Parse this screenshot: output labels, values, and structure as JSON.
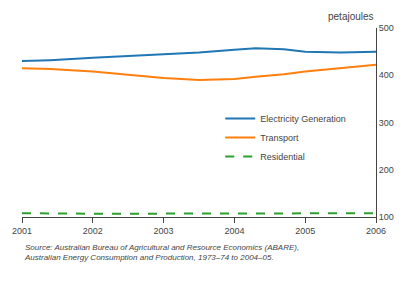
{
  "chart_data": {
    "type": "line",
    "x": [
      2001,
      2001.4,
      2002,
      2002.5,
      2003,
      2003.5,
      2004,
      2004.3,
      2004.7,
      2005,
      2005.5,
      2006
    ],
    "series": [
      {
        "name": "Electricity Generation",
        "values": [
          430,
          432,
          437,
          441,
          444,
          448,
          454,
          457,
          455,
          450,
          448,
          450
        ]
      },
      {
        "name": "Transport",
        "values": [
          415,
          413,
          408,
          401,
          394,
          390,
          392,
          397,
          402,
          408,
          415,
          422
        ]
      },
      {
        "name": "Residential",
        "values": [
          108,
          107,
          107,
          107,
          107,
          107,
          108,
          108,
          108,
          108,
          108,
          108
        ],
        "line_style": "dash"
      }
    ],
    "ylabel": "petajoules",
    "xlim": [
      2001,
      2006
    ],
    "xticks": [
      2001,
      2002,
      2003,
      2004,
      2005,
      2006
    ],
    "ylim": [
      100,
      500
    ],
    "yticks": [
      100,
      200,
      300,
      400,
      500
    ],
    "grid": false,
    "legend": "right",
    "annotations": [
      "Source: Australian Bureau of Agricultural and Resource Economics (ABARE),",
      "Australian Energy Consumption and Production, 1973–74 to 2004–05."
    ]
  }
}
